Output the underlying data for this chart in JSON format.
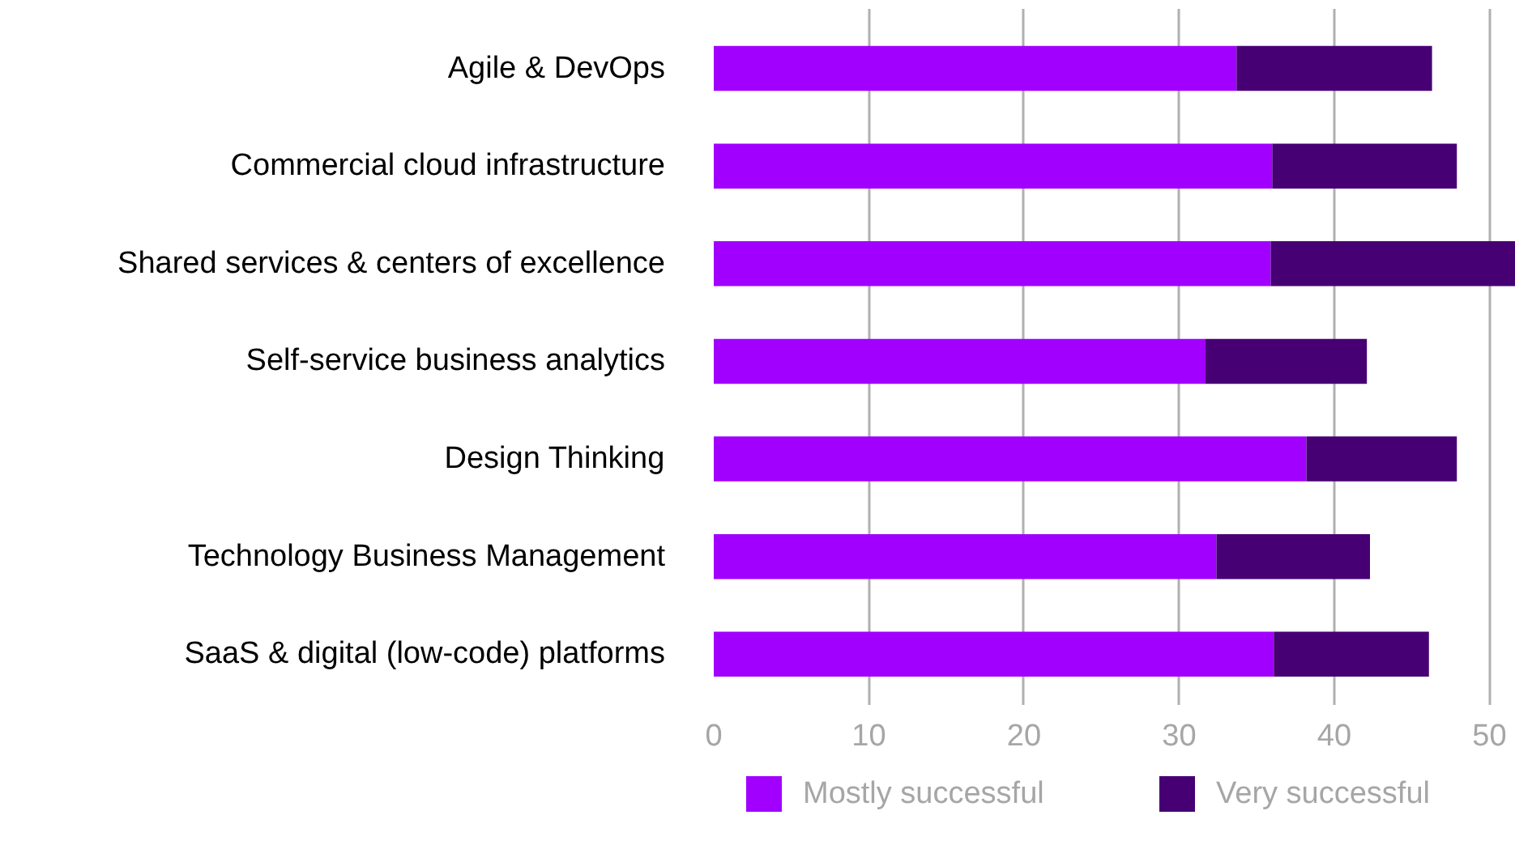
{
  "chart_data": {
    "type": "bar",
    "orientation": "horizontal",
    "stacked": true,
    "categories": [
      "Agile & DevOps",
      "Commercial cloud infrastructure",
      "Shared services & centers of excellence",
      "Self-service business analytics",
      "Design Thinking",
      "Technology Business Management",
      "SaaS & digital (low-code) platforms"
    ],
    "series": [
      {
        "name": "Mostly successful",
        "color": "#a100ff",
        "values": [
          33.7,
          36.0,
          35.9,
          31.7,
          38.2,
          32.4,
          36.1
        ]
      },
      {
        "name": "Very successful",
        "color": "#460073",
        "values": [
          12.6,
          11.9,
          15.8,
          10.4,
          9.7,
          9.9,
          10.0
        ]
      }
    ],
    "xlim": [
      0,
      51.7
    ],
    "xticks": [
      0,
      10,
      20,
      30,
      40,
      50
    ],
    "grid": "x",
    "legend": "bottom"
  }
}
